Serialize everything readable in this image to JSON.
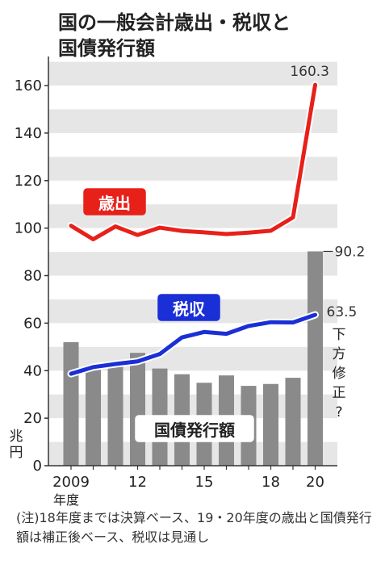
{
  "chart_data": {
    "type": "bar+line",
    "title_lines": [
      "国の一般会計歳出・税収と",
      "国債発行額"
    ],
    "unit_label": [
      "兆",
      "円"
    ],
    "x": [
      "2009",
      "10",
      "11",
      "12",
      "13",
      "14",
      "15",
      "16",
      "17",
      "18",
      "19",
      "20"
    ],
    "x_tick_labels": [
      {
        "index": 0,
        "label": "2009"
      },
      {
        "index": 3,
        "label": "12"
      },
      {
        "index": 6,
        "label": "15"
      },
      {
        "index": 9,
        "label": "18"
      },
      {
        "index": 11,
        "label": "20"
      }
    ],
    "x_sublabel": "年度",
    "ylim": [
      0,
      170
    ],
    "y_ticks": [
      0,
      20,
      40,
      60,
      80,
      100,
      120,
      140,
      160
    ],
    "series": [
      {
        "name": "歳出",
        "kind": "line",
        "color": "#e8201a",
        "values": [
          101.0,
          95.3,
          100.7,
          97.1,
          100.2,
          98.8,
          98.2,
          97.5,
          98.1,
          98.9,
          104.5,
          160.3
        ]
      },
      {
        "name": "税収",
        "kind": "line",
        "color": "#1a2fd6",
        "values": [
          38.7,
          41.5,
          42.8,
          43.9,
          47.0,
          54.0,
          56.3,
          55.5,
          58.8,
          60.4,
          60.3,
          63.5
        ]
      },
      {
        "name": "国債発行額",
        "kind": "bar",
        "color": "#8a8a8a",
        "values": [
          52.0,
          42.3,
          42.8,
          47.5,
          40.9,
          38.5,
          34.9,
          38.0,
          33.6,
          34.4,
          37.0,
          90.2
        ]
      }
    ],
    "annotations": {
      "spending_end": "160.3",
      "bond_end": "90.2",
      "revenue_end": "63.5",
      "revenue_note": "下方修正?"
    },
    "grid": "horizontal bands"
  },
  "note": "(注)18年度までは決算ベース、19・20年度の歳出と国債発行額は補正後ベース、税収は見通し"
}
